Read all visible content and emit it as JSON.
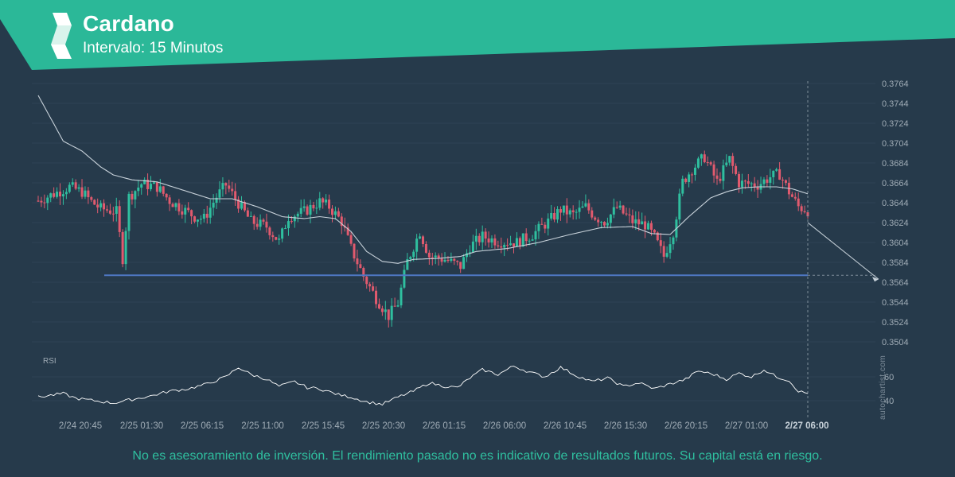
{
  "header": {
    "title": "Cardano",
    "subtitle": "Intervalo: 15 Minutos"
  },
  "disclaimer": "No es asesoramiento de inversión. El rendimiento pasado no es indicativo de resultados futuros. Su capital está en riesgo.",
  "watermark": "autochartist.com",
  "colors": {
    "background": "#263a4b",
    "brand": "#2bb898",
    "candle_up": "#2fbf9f",
    "candle_down": "#e15a6e",
    "moving_average": "#c8d2da",
    "support_line": "#4f78c4",
    "rsi_line": "#ffffff",
    "axis_text": "#9fabb5"
  },
  "icons": {
    "logo": "autochartist-logo-icon"
  },
  "chart_data": [
    {
      "type": "candlestick",
      "title": "Cardano",
      "interval": "15 Minutos",
      "ylim": [
        0.3494,
        0.3768
      ],
      "y_ticks": [
        "0.3764",
        "0.3744",
        "0.3724",
        "0.3704",
        "0.3684",
        "0.3664",
        "0.3644",
        "0.3624",
        "0.3604",
        "0.3584",
        "0.3564",
        "0.3544",
        "0.3524",
        "0.3504"
      ],
      "x_ticks": [
        "2/24 20:45",
        "2/25 01:30",
        "2/25 06:15",
        "2/25 11:00",
        "2/25 15:45",
        "2/25 20:30",
        "2/26 01:15",
        "2/26 06:00",
        "2/26 10:45",
        "2/26 15:30",
        "2/26 20:15",
        "2/27 01:00",
        "2/27 06:00"
      ],
      "highlighted_x_tick": "2/27 06:00",
      "support_level": 0.3571,
      "close_path_keypoints": [
        [
          0,
          0.3646
        ],
        [
          10,
          0.366
        ],
        [
          14,
          0.3655
        ],
        [
          17,
          0.3645
        ],
        [
          20,
          0.3638
        ],
        [
          25,
          0.3635
        ],
        [
          27,
          0.3588
        ],
        [
          29,
          0.365
        ],
        [
          33,
          0.3663
        ],
        [
          38,
          0.366
        ],
        [
          42,
          0.3646
        ],
        [
          46,
          0.3638
        ],
        [
          50,
          0.363
        ],
        [
          53,
          0.3628
        ],
        [
          57,
          0.365
        ],
        [
          60,
          0.3662
        ],
        [
          63,
          0.3648
        ],
        [
          68,
          0.3625
        ],
        [
          73,
          0.362
        ],
        [
          77,
          0.3605
        ],
        [
          80,
          0.363
        ],
        [
          85,
          0.3635
        ],
        [
          90,
          0.3645
        ],
        [
          93,
          0.364
        ],
        [
          97,
          0.3625
        ],
        [
          100,
          0.3598
        ],
        [
          104,
          0.357
        ],
        [
          108,
          0.3548
        ],
        [
          112,
          0.353
        ],
        [
          115,
          0.3543
        ],
        [
          118,
          0.3585
        ],
        [
          122,
          0.3615
        ],
        [
          125,
          0.359
        ],
        [
          130,
          0.3587
        ],
        [
          135,
          0.358
        ],
        [
          138,
          0.36
        ],
        [
          142,
          0.361
        ],
        [
          147,
          0.3605
        ],
        [
          153,
          0.3604
        ],
        [
          158,
          0.3612
        ],
        [
          163,
          0.3625
        ],
        [
          167,
          0.3637
        ],
        [
          171,
          0.3632
        ],
        [
          175,
          0.364
        ],
        [
          178,
          0.363
        ],
        [
          181,
          0.3625
        ],
        [
          185,
          0.3639
        ],
        [
          190,
          0.3625
        ],
        [
          194,
          0.3622
        ],
        [
          197,
          0.3609
        ],
        [
          200,
          0.359
        ],
        [
          203,
          0.3615
        ],
        [
          206,
          0.3665
        ],
        [
          209,
          0.3678
        ],
        [
          213,
          0.369
        ],
        [
          217,
          0.3665
        ],
        [
          221,
          0.3688
        ],
        [
          224,
          0.3664
        ],
        [
          230,
          0.3662
        ],
        [
          234,
          0.367
        ],
        [
          237,
          0.3673
        ],
        [
          240,
          0.3655
        ],
        [
          243,
          0.364
        ],
        [
          246,
          0.3636
        ]
      ],
      "moving_average_keypoints": [
        [
          0,
          0.3752
        ],
        [
          8,
          0.3706
        ],
        [
          14,
          0.3696
        ],
        [
          20,
          0.368
        ],
        [
          24,
          0.3672
        ],
        [
          30,
          0.3667
        ],
        [
          38,
          0.3665
        ],
        [
          48,
          0.3655
        ],
        [
          55,
          0.3648
        ],
        [
          62,
          0.3648
        ],
        [
          70,
          0.364
        ],
        [
          78,
          0.363
        ],
        [
          85,
          0.3628
        ],
        [
          90,
          0.363
        ],
        [
          95,
          0.3628
        ],
        [
          100,
          0.3615
        ],
        [
          105,
          0.3595
        ],
        [
          110,
          0.3585
        ],
        [
          115,
          0.3583
        ],
        [
          120,
          0.3587
        ],
        [
          128,
          0.3588
        ],
        [
          135,
          0.359
        ],
        [
          140,
          0.3595
        ],
        [
          150,
          0.3598
        ],
        [
          160,
          0.3604
        ],
        [
          170,
          0.3612
        ],
        [
          180,
          0.3619
        ],
        [
          190,
          0.362
        ],
        [
          196,
          0.3613
        ],
        [
          202,
          0.3612
        ],
        [
          208,
          0.363
        ],
        [
          215,
          0.3649
        ],
        [
          220,
          0.3655
        ],
        [
          225,
          0.3659
        ],
        [
          230,
          0.366
        ],
        [
          236,
          0.366
        ],
        [
          241,
          0.3658
        ],
        [
          246,
          0.3653
        ]
      ],
      "projection": {
        "from": 0.3624,
        "to": 0.3567
      }
    },
    {
      "type": "line",
      "title": "RSI",
      "ylim": [
        32,
        75
      ],
      "y_ticks": [
        "60",
        "40"
      ],
      "rsi_keypoints": [
        [
          0,
          43
        ],
        [
          8,
          46
        ],
        [
          12,
          42
        ],
        [
          18,
          40
        ],
        [
          24,
          38
        ],
        [
          30,
          41
        ],
        [
          36,
          44
        ],
        [
          42,
          48
        ],
        [
          48,
          50
        ],
        [
          54,
          54
        ],
        [
          60,
          60
        ],
        [
          64,
          68
        ],
        [
          68,
          62
        ],
        [
          73,
          58
        ],
        [
          77,
          52
        ],
        [
          82,
          56
        ],
        [
          86,
          51
        ],
        [
          90,
          50
        ],
        [
          96,
          45
        ],
        [
          100,
          43
        ],
        [
          105,
          39
        ],
        [
          110,
          37
        ],
        [
          115,
          43
        ],
        [
          120,
          48
        ],
        [
          125,
          55
        ],
        [
          130,
          52
        ],
        [
          134,
          51
        ],
        [
          138,
          59
        ],
        [
          142,
          66
        ],
        [
          147,
          62
        ],
        [
          152,
          69
        ],
        [
          157,
          64
        ],
        [
          162,
          60
        ],
        [
          167,
          68
        ],
        [
          172,
          61
        ],
        [
          177,
          56
        ],
        [
          182,
          59
        ],
        [
          187,
          52
        ],
        [
          192,
          55
        ],
        [
          197,
          50
        ],
        [
          202,
          54
        ],
        [
          207,
          58
        ],
        [
          211,
          65
        ],
        [
          216,
          62
        ],
        [
          220,
          58
        ],
        [
          224,
          63
        ],
        [
          228,
          60
        ],
        [
          232,
          66
        ],
        [
          236,
          60
        ],
        [
          240,
          57
        ],
        [
          243,
          48
        ],
        [
          246,
          46
        ]
      ]
    }
  ]
}
